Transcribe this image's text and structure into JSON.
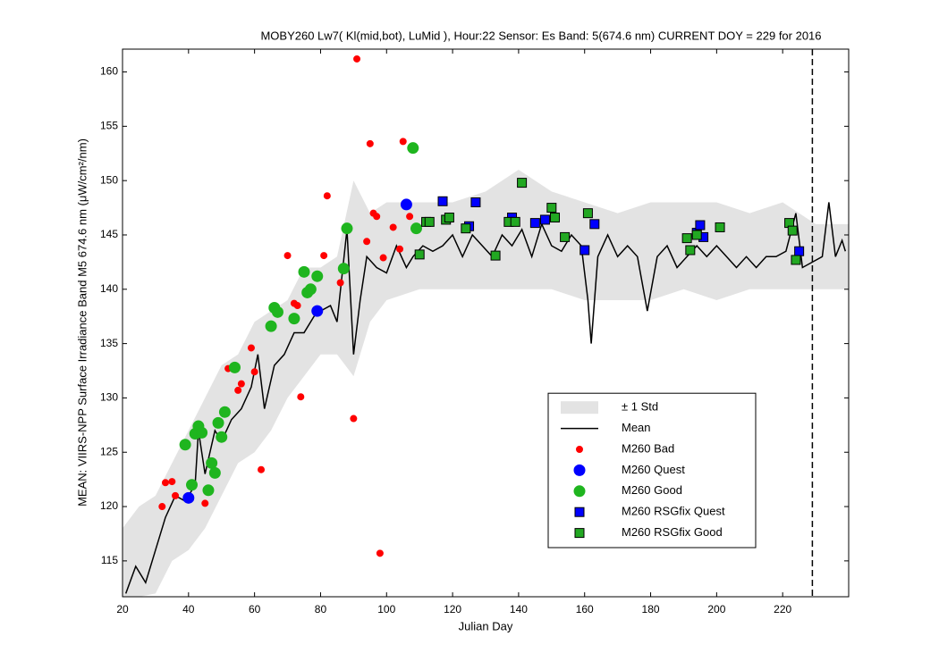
{
  "chart_data": {
    "type": "line",
    "title": "MOBY260   Lw7( Kl(mid,bot), LuMid ),   Hour:22 Sensor: Es Band: 5(674.6 nm)   CURRENT DOY = 229 for 2016",
    "xlabel": "Julian Day",
    "ylabel": "MEAN: VIIRS-NPP Surface Irradiance Band M5 674.6 nm (μW/cm²/nm)",
    "xlim": [
      20,
      240
    ],
    "ylim": [
      111.7,
      162.1
    ],
    "xticks": [
      20,
      40,
      60,
      80,
      100,
      120,
      140,
      160,
      180,
      200,
      220
    ],
    "yticks": [
      115,
      120,
      125,
      130,
      135,
      140,
      145,
      150,
      155,
      160
    ],
    "legend": "lower right",
    "current_doy_line": 229,
    "band": {
      "name": "± 1 Std",
      "color": "#e3e3e3",
      "x": [
        20,
        25,
        30,
        35,
        40,
        45,
        50,
        55,
        60,
        65,
        70,
        75,
        80,
        85,
        90,
        95,
        100,
        110,
        120,
        130,
        140,
        150,
        160,
        170,
        180,
        190,
        200,
        210,
        220,
        230,
        240
      ],
      "low": [
        111.7,
        111.7,
        112,
        115,
        116,
        118,
        121,
        124,
        125,
        127,
        130,
        132,
        134,
        134,
        132,
        137,
        139,
        140,
        140,
        140,
        140,
        140,
        139,
        139,
        139,
        140,
        139,
        140,
        140,
        140,
        140
      ],
      "high": [
        118,
        120,
        121,
        124,
        127,
        130,
        133,
        134,
        137,
        138,
        139,
        142,
        142,
        143,
        150,
        147,
        148,
        148,
        148,
        149,
        151,
        149,
        148,
        147,
        148,
        148,
        148,
        147,
        148,
        146,
        146
      ]
    },
    "mean": {
      "name": "Mean",
      "color": "#000000",
      "x": [
        21,
        24,
        27,
        30,
        33,
        36,
        39,
        42,
        43,
        45,
        48,
        50,
        53,
        56,
        59,
        61,
        63,
        66,
        69,
        72,
        75,
        78,
        80,
        83,
        85,
        88,
        90,
        92,
        94,
        97,
        100,
        103,
        106,
        108,
        111,
        114,
        117,
        120,
        123,
        126,
        129,
        132,
        135,
        138,
        141,
        144,
        147,
        150,
        153,
        156,
        159,
        161,
        162,
        164,
        167,
        170,
        173,
        176,
        179,
        182,
        185,
        188,
        191,
        194,
        197,
        200,
        203,
        206,
        209,
        212,
        215,
        218,
        221,
        224,
        226,
        229,
        232,
        234,
        236,
        238,
        239
      ],
      "values": [
        112,
        114.5,
        113,
        116,
        119,
        121,
        120.5,
        122,
        127,
        123,
        127,
        126,
        128,
        129,
        131,
        134,
        129,
        133,
        134,
        136,
        136,
        137.5,
        138,
        138.5,
        137,
        145.5,
        134,
        139,
        143,
        142,
        141.5,
        144,
        142,
        143,
        144,
        143.5,
        144,
        145,
        143,
        145,
        144,
        143,
        145,
        144,
        145.5,
        143,
        146,
        144,
        143.5,
        145,
        144,
        139,
        135,
        143,
        145,
        143,
        144,
        143,
        138,
        143,
        144,
        142,
        143,
        144,
        143,
        144,
        143,
        142,
        143,
        142,
        143,
        143,
        143.5,
        147,
        142,
        142.5,
        143,
        148,
        143,
        144.5,
        143.5
      ]
    },
    "points": [
      {
        "name": "M260 Bad",
        "color": "#ff0000",
        "marker": "circle",
        "size": 3.5,
        "x": [
          32,
          33,
          35,
          36,
          45,
          52,
          55,
          56,
          59,
          60,
          62,
          70,
          72,
          73,
          74,
          79,
          81,
          82,
          86,
          90,
          91,
          94,
          95,
          96,
          97,
          98,
          99,
          102,
          104,
          105,
          107
        ],
        "y": [
          120,
          122.2,
          122.3,
          121,
          120.3,
          132.7,
          130.7,
          131.3,
          134.6,
          132.4,
          123.4,
          143.1,
          138.7,
          138.5,
          130.1,
          141.3,
          143.1,
          148.6,
          140.6,
          128.1,
          161.2,
          144.4,
          153.4,
          147,
          146.7,
          115.7,
          142.9,
          145.7,
          143.7,
          153.6,
          146.7
        ]
      },
      {
        "name": "M260 Quest",
        "color": "#0000ff",
        "marker": "circle",
        "size": 6,
        "x": [
          40,
          79,
          106
        ],
        "y": [
          120.8,
          138,
          147.8
        ]
      },
      {
        "name": "M260 Good",
        "color": "#1fb51f",
        "marker": "circle",
        "size": 6,
        "x": [
          39,
          41,
          42,
          43,
          44,
          46,
          47,
          48,
          49,
          50,
          51,
          54,
          65,
          66,
          67,
          72,
          75,
          76,
          77,
          79,
          87,
          88,
          108,
          109
        ],
        "y": [
          125.7,
          122,
          126.7,
          127.4,
          126.8,
          121.5,
          124,
          123.1,
          127.7,
          126.4,
          128.7,
          132.8,
          136.6,
          138.3,
          137.9,
          137.3,
          141.6,
          139.7,
          140,
          141.2,
          141.9,
          145.6,
          153,
          145.6
        ]
      },
      {
        "name": "M260 RSGfix Quest",
        "color": "#0000ff",
        "marker": "square",
        "size": 5,
        "x": [
          117,
          125,
          127,
          138,
          145,
          148,
          160,
          163,
          194,
          195,
          196,
          225
        ],
        "y": [
          148.1,
          145.8,
          148,
          146.6,
          146.1,
          146.4,
          143.6,
          146,
          145.2,
          145.9,
          144.8,
          143.5
        ]
      },
      {
        "name": "M260 RSGfix Good",
        "color": "#22a822",
        "marker": "square",
        "size": 5,
        "x": [
          110,
          112,
          113,
          118,
          119,
          124,
          133,
          137,
          139,
          141,
          150,
          151,
          154,
          161,
          191,
          192,
          194,
          201,
          222,
          223,
          224
        ],
        "y": [
          143.2,
          146.2,
          146.2,
          146.4,
          146.6,
          145.6,
          143.1,
          146.2,
          146.2,
          149.8,
          147.5,
          146.6,
          144.8,
          147,
          144.7,
          143.6,
          145,
          145.7,
          146.1,
          145.4,
          142.7
        ]
      }
    ]
  }
}
